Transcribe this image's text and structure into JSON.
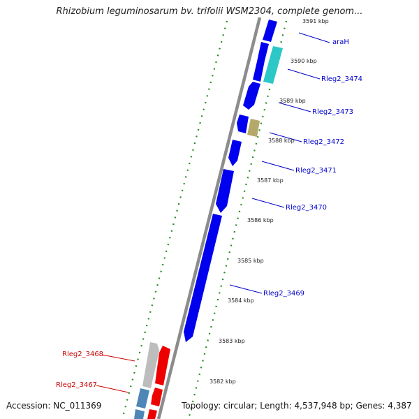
{
  "title": "Rhizobium leguminosarum bv. trifolii WSM2304, complete genom...",
  "footer": {
    "accession": "Accession: NC_011369",
    "topology": "Topology: circular; Length: 4,537,948 bp; Genes: 4,387"
  },
  "colors": {
    "backbone": "#8c8c8c",
    "forward_gene": "#0000ee",
    "reverse_gene": "#ee0000",
    "label_forward": "#0000cc",
    "label_reverse": "#cc0000",
    "tick": "#228b22",
    "cyan_feature": "#2cc7c7",
    "olive_feature": "#b5a96a",
    "grey_feature": "#bdbdbd",
    "steel_feature": "#4f86b8"
  },
  "scale_labels": [
    "3591 kbp",
    "3590 kbp",
    "3589 kbp",
    "3588 kbp",
    "3587 kbp",
    "3586 kbp",
    "3585 kbp",
    "3584 kbp",
    "3583 kbp",
    "3582 kbp"
  ],
  "gene_labels": [
    {
      "name": "araH",
      "strand": "forward"
    },
    {
      "name": "Rleg2_3474",
      "strand": "forward"
    },
    {
      "name": "Rleg2_3473",
      "strand": "forward"
    },
    {
      "name": "Rleg2_3472",
      "strand": "forward"
    },
    {
      "name": "Rleg2_3471",
      "strand": "forward"
    },
    {
      "name": "Rleg2_3470",
      "strand": "forward"
    },
    {
      "name": "Rleg2_3469",
      "strand": "forward"
    },
    {
      "name": "Rleg2_3468",
      "strand": "reverse"
    },
    {
      "name": "Rleg2_3467",
      "strand": "reverse"
    }
  ]
}
